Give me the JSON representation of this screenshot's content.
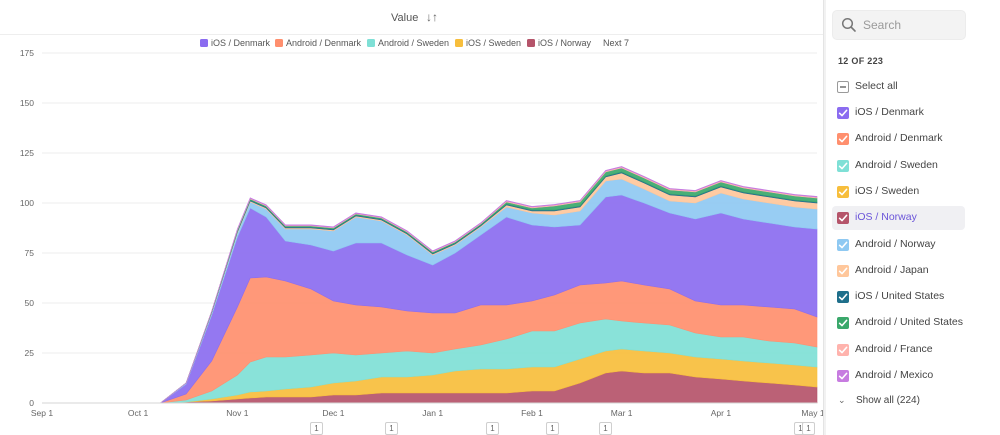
{
  "header": {
    "sort_label": "Value",
    "sort_icon": "sort-descending-icon"
  },
  "legend": {
    "items": [
      {
        "label": "iOS / Denmark",
        "color": "#8b6cf0"
      },
      {
        "label": "Android / Denmark",
        "color": "#ff8f6e"
      },
      {
        "label": "Android / Sweden",
        "color": "#7fe0d6"
      },
      {
        "label": "iOS / Sweden",
        "color": "#f7be3c"
      },
      {
        "label": "iOS / Norway",
        "color": "#b5546a"
      }
    ],
    "next_label": "Next 7"
  },
  "chart_data": {
    "type": "area",
    "stacked": true,
    "x": [
      "Sep 1",
      "Sep 16",
      "Oct 1",
      "Oct 8",
      "Oct 16",
      "Oct 24",
      "Nov 1",
      "Nov 5",
      "Nov 10",
      "Nov 16",
      "Nov 24",
      "Dec 1",
      "Dec 8",
      "Dec 16",
      "Dec 24",
      "Jan 1",
      "Jan 8",
      "Jan 16",
      "Jan 24",
      "Feb 1",
      "Feb 8",
      "Feb 16",
      "Feb 24",
      "Mar 1",
      "Mar 8",
      "Mar 16",
      "Mar 24",
      "Apr 1",
      "Apr 8",
      "Apr 16",
      "Apr 24",
      "May 1"
    ],
    "x_tick_labels": [
      "Sep 1",
      "Oct 1",
      "Nov 1",
      "Dec 1",
      "Jan 1",
      "Feb 1",
      "Mar 1",
      "Apr 1",
      "May 1"
    ],
    "series": [
      {
        "name": "iOS / Norway",
        "color": "#b5546a",
        "values": [
          0,
          0,
          0,
          0,
          0.5,
          1,
          2,
          2.5,
          3,
          3,
          3,
          4,
          4,
          5,
          5,
          5,
          5,
          5,
          5,
          6,
          6,
          10,
          15,
          16,
          15,
          15,
          13,
          12,
          11,
          10,
          9,
          8
        ]
      },
      {
        "name": "iOS / Sweden",
        "color": "#f7be3c",
        "values": [
          0,
          0,
          0,
          0,
          0,
          1,
          2,
          3,
          3,
          4,
          5,
          6,
          7,
          8,
          8,
          9,
          11,
          12,
          12,
          12,
          12,
          12,
          11,
          11,
          11,
          10,
          10,
          10,
          10,
          10,
          10,
          10
        ]
      },
      {
        "name": "Android / Sweden",
        "color": "#7fe0d6",
        "values": [
          0,
          0,
          0,
          0,
          1,
          4,
          10,
          15,
          17,
          16,
          16,
          15,
          13,
          12,
          13,
          11,
          11,
          12,
          15,
          18,
          18,
          18,
          16,
          14,
          14,
          14,
          12,
          11,
          12,
          11,
          11,
          10
        ]
      },
      {
        "name": "Android / Denmark",
        "color": "#ff8f6e",
        "values": [
          0,
          0,
          0,
          0,
          3,
          15,
          34,
          42,
          40,
          38,
          33,
          26,
          25,
          23,
          20,
          20,
          18,
          20,
          17,
          15,
          18,
          19,
          18,
          20,
          19,
          18,
          16,
          16,
          16,
          17,
          17,
          15
        ]
      },
      {
        "name": "iOS / Denmark",
        "color": "#8b6cf0",
        "values": [
          0,
          0,
          0,
          0,
          5,
          23,
          35,
          35,
          30,
          20,
          22,
          25,
          31,
          32,
          28,
          24,
          30,
          35,
          44,
          38,
          34,
          30,
          43,
          43,
          41,
          38,
          41,
          46,
          43,
          42,
          41,
          44
        ]
      },
      {
        "name": "Android / Norway",
        "color": "#8fc9f2",
        "values": [
          0,
          0,
          0,
          0,
          0.5,
          1,
          2,
          3,
          4,
          6,
          8,
          10,
          13,
          11,
          10,
          5,
          4,
          4,
          5,
          6,
          6,
          7,
          8,
          8,
          7,
          6,
          8,
          10,
          10,
          10,
          10,
          10
        ]
      },
      {
        "name": "Android / Japan",
        "color": "#ffc79b",
        "values": [
          0,
          0,
          0,
          0,
          0,
          0.3,
          0.5,
          0.5,
          0.5,
          0.5,
          0.5,
          0.5,
          0.5,
          0.5,
          0.5,
          0.5,
          0.5,
          0.5,
          1,
          1,
          2,
          2,
          2,
          3,
          3,
          3,
          3,
          3,
          3,
          3,
          3,
          3
        ]
      },
      {
        "name": "iOS / United States",
        "color": "#1f6f8b",
        "values": [
          0,
          0,
          0,
          0,
          0,
          0.3,
          0.5,
          0.5,
          0.5,
          0.5,
          0.5,
          0.5,
          0.5,
          0.5,
          0.5,
          0.5,
          0.5,
          0.5,
          0.5,
          0.5,
          0.5,
          0.5,
          0.5,
          0.5,
          0.5,
          0.5,
          0.5,
          0.5,
          0.5,
          0.5,
          0.5,
          0.5
        ]
      },
      {
        "name": "Android / United States",
        "color": "#3aa86b",
        "values": [
          0,
          0,
          0,
          0,
          0,
          0.3,
          0.5,
          0.5,
          0.5,
          0.5,
          0.5,
          0.5,
          0.5,
          0.5,
          0.5,
          0.5,
          0.5,
          0.5,
          1,
          1,
          2,
          2,
          2,
          2,
          2,
          2,
          2,
          2,
          2,
          2,
          2,
          2
        ]
      },
      {
        "name": "Android / France",
        "color": "#ffb3ad",
        "values": [
          0,
          0,
          0,
          0,
          0,
          0,
          0.3,
          0.3,
          0.3,
          0.3,
          0.3,
          0.3,
          0.3,
          0.3,
          0.3,
          0.3,
          0.3,
          0.3,
          0.5,
          0.5,
          0.5,
          0.5,
          0.5,
          0.5,
          0.5,
          0.5,
          0.5,
          0.5,
          0.5,
          0.5,
          0.5,
          0.5
        ]
      },
      {
        "name": "Android / Mexico",
        "color": "#c77ce0",
        "values": [
          0,
          0,
          0,
          0,
          0,
          0,
          0.3,
          0.3,
          0.3,
          0.3,
          0.3,
          0.3,
          0.3,
          0.3,
          0.3,
          0.3,
          0.3,
          0.3,
          0.3,
          0.3,
          0.3,
          0.3,
          0.3,
          0.3,
          0.3,
          0.3,
          0.3,
          0.3,
          0.3,
          0.3,
          0.3,
          0.3
        ]
      }
    ],
    "ylim": [
      0,
      175
    ],
    "yticks": [
      0,
      25,
      50,
      75,
      100,
      125,
      150,
      175
    ],
    "grid": true,
    "legend_position": "top"
  },
  "bottom_markers": [
    "1",
    "1",
    "1",
    "1",
    "1",
    "1",
    "1"
  ],
  "sidebar": {
    "search_placeholder": "Search",
    "search_icon": "search-icon",
    "count_label": "12 OF 223",
    "select_all_label": "Select all",
    "items": [
      {
        "label": "iOS / Denmark",
        "color": "#8b6cf0",
        "active": false
      },
      {
        "label": "Android / Denmark",
        "color": "#ff8f6e",
        "active": false
      },
      {
        "label": "Android / Sweden",
        "color": "#7fe0d6",
        "active": false
      },
      {
        "label": "iOS / Sweden",
        "color": "#f7be3c",
        "active": false
      },
      {
        "label": "iOS / Norway",
        "color": "#b5546a",
        "active": true
      },
      {
        "label": "Android / Norway",
        "color": "#8fc9f2",
        "active": false
      },
      {
        "label": "Android / Japan",
        "color": "#ffc79b",
        "active": false
      },
      {
        "label": "iOS / United States",
        "color": "#1f6f8b",
        "active": false
      },
      {
        "label": "Android / United States",
        "color": "#3aa86b",
        "active": false
      },
      {
        "label": "Android / France",
        "color": "#ffb3ad",
        "active": false
      },
      {
        "label": "Android / Mexico",
        "color": "#c77ce0",
        "active": false
      }
    ],
    "show_all_label": "Show all (224)"
  }
}
